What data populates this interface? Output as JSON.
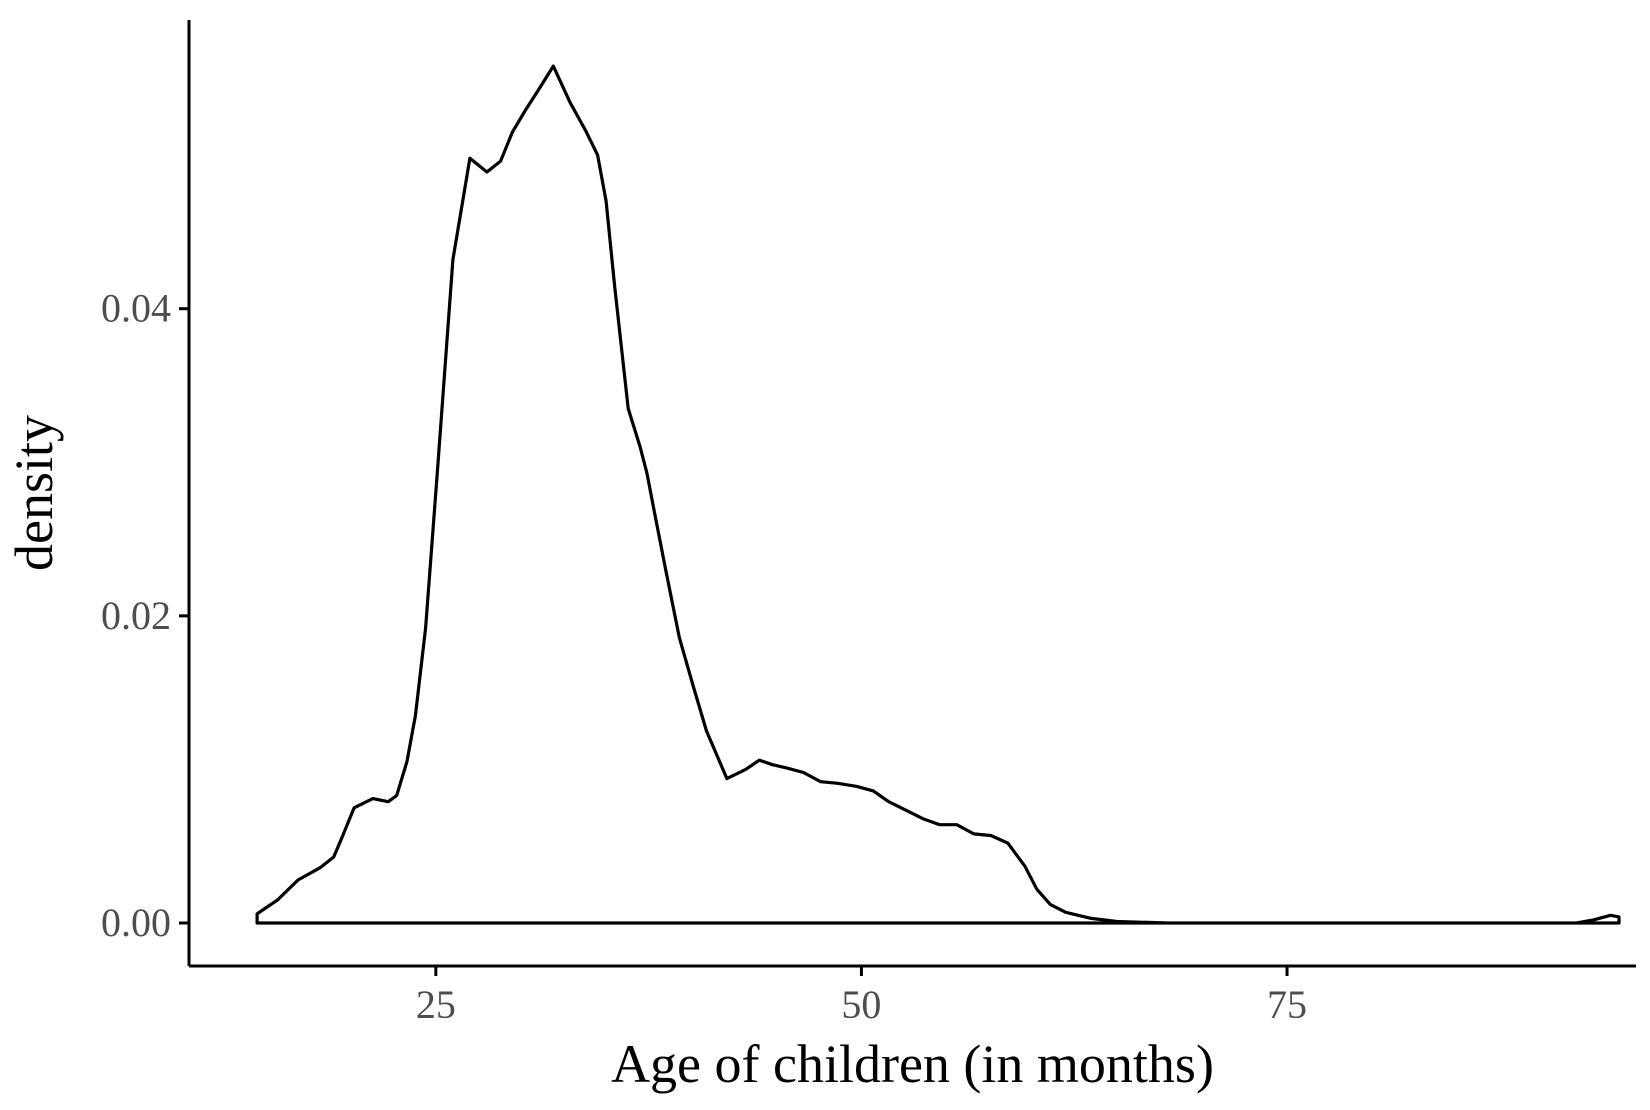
{
  "chart_data": {
    "type": "area",
    "title": "",
    "xlabel": "Age of children (in months)",
    "ylabel": "density",
    "xlim": [
      10.5,
      95.5
    ],
    "ylim": [
      -0.0028,
      0.0588
    ],
    "x_ticks": [
      25,
      50,
      75
    ],
    "x_tick_labels": [
      "25",
      "50",
      "75"
    ],
    "y_ticks": [
      0.0,
      0.02,
      0.04
    ],
    "y_tick_labels": [
      "0.00",
      "0.02",
      "0.04"
    ],
    "grid": false,
    "legend": "none",
    "fill": "none",
    "line_color": "#000000",
    "series": [
      {
        "x": [
          14.5,
          15.7,
          16.9,
          18.2,
          19.0,
          19.5,
          20.2,
          21.3,
          22.2,
          22.7,
          23.3,
          23.8,
          24.4,
          25.1,
          26.0,
          27.0,
          28.0,
          28.8,
          29.5,
          30.3,
          31.0,
          31.9,
          32.9,
          33.8,
          34.5,
          35.0,
          35.5,
          36.3,
          37.0,
          37.4,
          37.8,
          38.5,
          39.3,
          40.1,
          40.9,
          42.1,
          43.2,
          44.0,
          44.8,
          45.6,
          46.6,
          47.6,
          48.6,
          49.7,
          50.7,
          51.6,
          52.7,
          53.6,
          54.6,
          55.6,
          56.6,
          57.6,
          58.6,
          59.6,
          60.3,
          61.1,
          62.0,
          63.5,
          65.0,
          68.0,
          72.0,
          78.0,
          85.0,
          90.0,
          92.0,
          93.0,
          94.0,
          94.5,
          94.5,
          14.5,
          14.5
        ],
        "values": [
          0.0006,
          0.0015,
          0.0028,
          0.0036,
          0.0043,
          0.0056,
          0.0075,
          0.0081,
          0.0079,
          0.0083,
          0.0105,
          0.0135,
          0.0192,
          0.0295,
          0.0432,
          0.0498,
          0.0489,
          0.0496,
          0.0515,
          0.053,
          0.0542,
          0.0558,
          0.0534,
          0.0516,
          0.05,
          0.047,
          0.0415,
          0.0335,
          0.031,
          0.0293,
          0.027,
          0.023,
          0.0186,
          0.0155,
          0.0125,
          0.0094,
          0.01,
          0.0106,
          0.0103,
          0.0101,
          0.0098,
          0.0092,
          0.0091,
          0.0089,
          0.0086,
          0.0079,
          0.0073,
          0.0068,
          0.0064,
          0.0064,
          0.0058,
          0.0057,
          0.0052,
          0.0037,
          0.0022,
          0.0012,
          0.0007,
          0.0003,
          0.0001,
          0.0,
          0.0,
          0.0,
          0.0,
          0.0,
          0.0,
          0.0002,
          0.0005,
          0.0004,
          0.0,
          0.0,
          0.0006
        ]
      }
    ]
  }
}
